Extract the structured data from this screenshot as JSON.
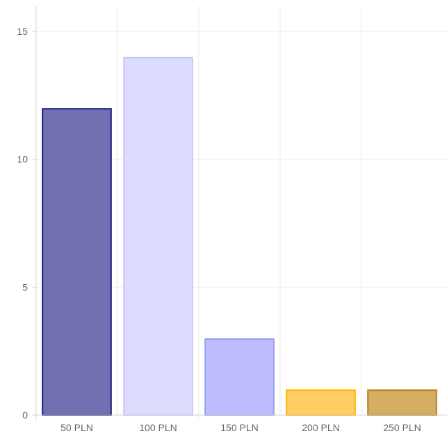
{
  "chart_data": {
    "type": "bar",
    "title": "",
    "xlabel": "",
    "ylabel": "",
    "categories": [
      "50 PLN",
      "100 PLN",
      "150 PLN",
      "200 PLN",
      "250 PLN"
    ],
    "values": [
      12,
      14,
      3,
      1,
      1
    ],
    "ylim": [
      0,
      16
    ],
    "yticks": [
      0,
      5,
      10,
      15
    ],
    "grid": true,
    "legend": "none",
    "colors": {
      "fill": [
        "#7070b0",
        "#dcdcff",
        "#bebeff",
        "#ffcd62",
        "#d4ae62"
      ],
      "border": [
        "#1e1a7a",
        "#c8c8f4",
        "#9a9af0",
        "#ffb200",
        "#b08418"
      ],
      "grid": "#ebebeb",
      "axis": "#d6d6d6",
      "tick_text": "#666666"
    }
  }
}
